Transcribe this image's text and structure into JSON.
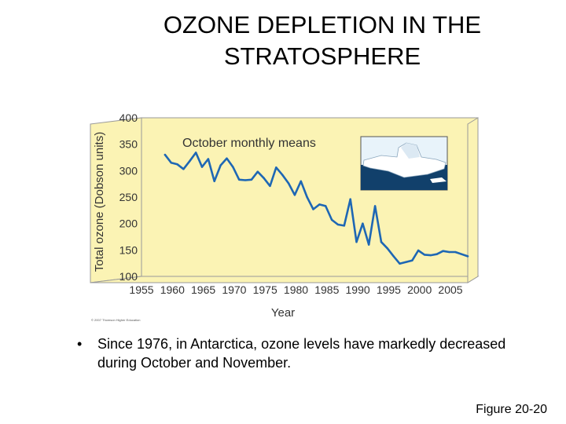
{
  "slide": {
    "title_line1": "OZONE DEPLETION IN THE",
    "title_line2": "STRATOSPHERE",
    "bullet": "Since 1976, in Antarctica, ozone levels have markedly decreased during October and November.",
    "figure_label": "Figure 20-20",
    "copyright": "© 2007 Thomson Higher Education"
  },
  "colors": {
    "line": "#1e67b4",
    "wall": "#fbf3b4",
    "wall_edge": "#9a9a9a",
    "text": "#333333",
    "sky": "#e8f3fa",
    "water": "#11406b",
    "ice": "#ffffff"
  },
  "icons": {
    "inset": "antarctic-iceberg-icon"
  },
  "chart_data": {
    "type": "line",
    "annotation": "October monthly means",
    "xlabel": "Year",
    "ylabel": "Total ozone (Dobson units)",
    "xlim": [
      1955,
      2005
    ],
    "ylim": [
      100,
      400
    ],
    "xticks": [
      "1955",
      "1960",
      "1965",
      "1970",
      "1975",
      "1980",
      "1985",
      "1990",
      "1995",
      "2000",
      "2005"
    ],
    "yticks": [
      "100",
      "150",
      "200",
      "250",
      "300",
      "350",
      "400"
    ],
    "grid": false,
    "series": [
      {
        "x": [
          1956,
          1957,
          1958,
          1959,
          1960,
          1961,
          1962,
          1963,
          1964,
          1965,
          1966,
          1967,
          1968,
          1969,
          1970,
          1971,
          1972,
          1973,
          1974,
          1975,
          1976,
          1977,
          1978,
          1979,
          1980,
          1981,
          1982,
          1983,
          1984,
          1985,
          1986,
          1987,
          1988,
          1989,
          1990,
          1991,
          1992,
          1993,
          1994,
          1995,
          1996,
          1997,
          1998,
          1999,
          2000,
          2001,
          2002,
          2003,
          2004,
          2005
        ],
        "y": [
          330,
          315,
          312,
          303,
          318,
          334,
          307,
          322,
          280,
          310,
          323,
          307,
          283,
          282,
          283,
          298,
          286,
          271,
          306,
          292,
          276,
          254,
          280,
          250,
          227,
          236,
          233,
          207,
          198,
          196,
          246,
          165,
          200,
          160,
          233,
          165,
          153,
          138,
          124,
          127,
          130,
          149,
          141,
          140,
          142,
          148,
          146,
          146,
          142,
          138
        ]
      }
    ]
  }
}
